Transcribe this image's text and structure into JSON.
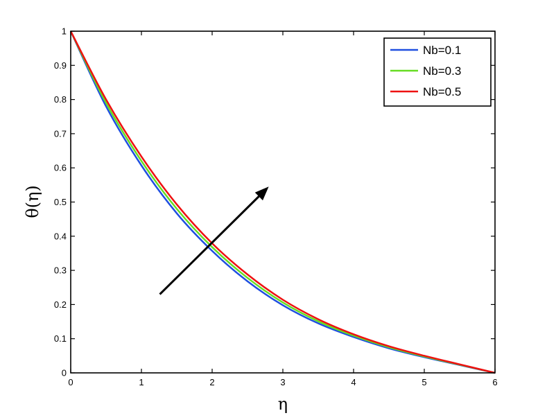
{
  "chart_data": {
    "type": "line",
    "title": "",
    "xlabel": "η",
    "ylabel": "θ(η)",
    "xlim": [
      0,
      6
    ],
    "ylim": [
      0,
      1
    ],
    "xticks": [
      "0",
      "1",
      "2",
      "3",
      "4",
      "5",
      "6"
    ],
    "yticks": [
      "0",
      "0.1",
      "0.2",
      "0.3",
      "0.4",
      "0.5",
      "0.6",
      "0.7",
      "0.8",
      "0.9",
      "1"
    ],
    "grid": false,
    "legend_position": "top-right",
    "x": [
      0,
      0.5,
      1,
      1.5,
      2,
      2.5,
      3,
      3.5,
      4,
      4.5,
      5,
      5.5,
      6
    ],
    "series": [
      {
        "name": "Nb=0.1",
        "color": "#1f4fe0",
        "values": [
          1.0,
          0.78,
          0.607,
          0.467,
          0.357,
          0.268,
          0.198,
          0.145,
          0.105,
          0.072,
          0.046,
          0.023,
          0.0
        ]
      },
      {
        "name": "Nb=0.3",
        "color": "#66dd22",
        "values": [
          1.0,
          0.79,
          0.62,
          0.48,
          0.368,
          0.278,
          0.206,
          0.151,
          0.109,
          0.075,
          0.048,
          0.024,
          0.0
        ]
      },
      {
        "name": "Nb=0.5",
        "color": "#ee1111",
        "values": [
          1.0,
          0.8,
          0.633,
          0.493,
          0.379,
          0.288,
          0.214,
          0.157,
          0.113,
          0.078,
          0.05,
          0.025,
          0.0
        ]
      }
    ],
    "annotation": {
      "type": "arrow",
      "from": [
        1.26,
        0.23
      ],
      "to": [
        2.8,
        0.545
      ],
      "meaning": "increasing Nb"
    }
  }
}
